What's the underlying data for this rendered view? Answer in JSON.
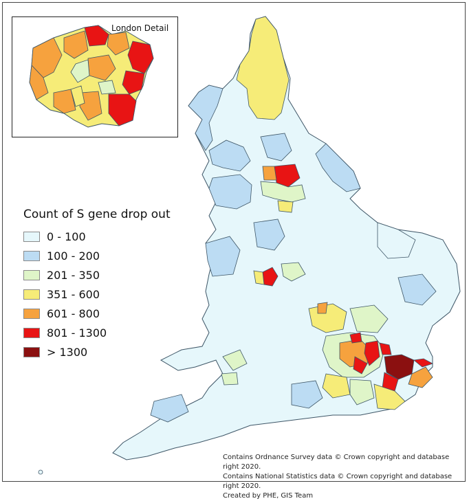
{
  "inset": {
    "title": "London Detail"
  },
  "legend": {
    "title": "Count of S gene drop out",
    "items": [
      {
        "label": "0 - 100",
        "color": "#e6f7fb"
      },
      {
        "label": "100 - 200",
        "color": "#bcdcf3"
      },
      {
        "label": "201 - 350",
        "color": "#dff5c8"
      },
      {
        "label": "351 - 600",
        "color": "#f6ec78"
      },
      {
        "label": "601 - 800",
        "color": "#f6a23e"
      },
      {
        "label": "801 - 1300",
        "color": "#e81414"
      },
      {
        "label": "> 1300",
        "color": "#8b1010"
      }
    ]
  },
  "credits": [
    "Contains Ordnance Survey data © Crown copyright and database right 2020.",
    "Contains National Statistics data © Crown copyright and database right 2020.",
    "Created by PHE, GIS Team"
  ]
}
